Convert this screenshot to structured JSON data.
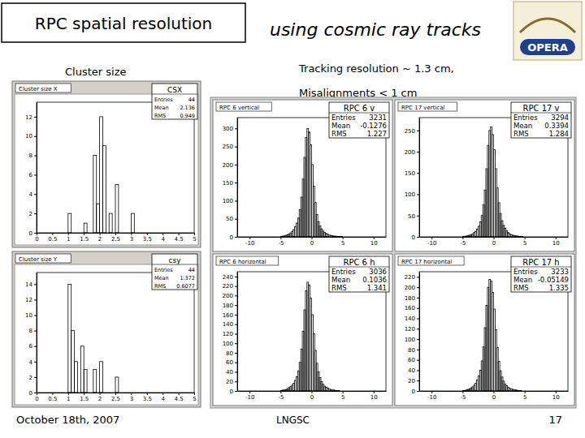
{
  "slide": {
    "title": "RPC spatial resolution",
    "subtitle": "using cosmic ray tracks",
    "section": "Cluster size",
    "notes": [
      "Tracking resolution ~ 1.3 cm,",
      "Misalignments < 1 cm"
    ],
    "logo": "OPERA",
    "footer": {
      "date": "October 18th, 2007",
      "venue": "LNGSC",
      "page": 17
    }
  },
  "chart_data": [
    {
      "type": "histogram",
      "title": "Cluster size X",
      "bins": [
        1,
        1.1,
        1.2,
        1.3,
        1.4,
        1.5,
        1.6,
        1.7,
        1.8,
        1.9,
        2,
        2.1,
        2.2,
        2.3,
        2.4,
        2.5,
        2.6,
        2.7,
        2.8,
        2.9,
        3,
        3.1
      ],
      "values": [
        2,
        0,
        0,
        0,
        0,
        1,
        0,
        0,
        8,
        3,
        12,
        9,
        0,
        2,
        0,
        5,
        0,
        0,
        0,
        0,
        2
      ],
      "xlim": [
        0,
        5
      ],
      "xticks": [
        0,
        0.5,
        1,
        1.5,
        2,
        2.5,
        3,
        3.5,
        4,
        4.5,
        5
      ],
      "ylim": [
        0,
        13.5
      ],
      "yticks": [
        0,
        2,
        4,
        6,
        8,
        10,
        12
      ],
      "stats": {
        "name": "CSX",
        "rows": [
          {
            "label": "Entries",
            "value": 44
          },
          {
            "label": "Mean",
            "value": 2.136
          },
          {
            "label": "RMS",
            "value": 0.949
          }
        ]
      }
    },
    {
      "type": "histogram",
      "title": "Cluster size Y",
      "bins": [
        1,
        1.1,
        1.2,
        1.3,
        1.4,
        1.5,
        1.6,
        1.7,
        1.8,
        1.9,
        2,
        2.1,
        2.2,
        2.3,
        2.4,
        2.5,
        2.6
      ],
      "values": [
        14,
        8,
        4,
        0,
        6,
        3,
        0,
        0,
        3,
        0,
        4,
        0,
        0,
        0,
        0,
        2
      ],
      "xlim": [
        0,
        5
      ],
      "xticks": [
        0,
        0.5,
        1,
        1.5,
        2,
        2.5,
        3,
        3.5,
        4,
        4.5,
        5
      ],
      "ylim": [
        0,
        15.5
      ],
      "yticks": [
        0,
        2,
        4,
        6,
        8,
        10,
        12,
        14
      ],
      "stats": {
        "name": "csy",
        "rows": [
          {
            "label": "Entries",
            "value": 44
          },
          {
            "label": "Mean",
            "value": 1.372
          },
          {
            "label": "RMS",
            "value": 0.6077
          }
        ]
      }
    },
    {
      "type": "histogram",
      "title": "RPC 6 vertical",
      "bins": [
        -5,
        -4.75,
        -4.5,
        -4.25,
        -4,
        -3.75,
        -3.5,
        -3.25,
        -3,
        -2.75,
        -2.5,
        -2.25,
        -2,
        -1.75,
        -1.5,
        -1.25,
        -1,
        -0.75,
        -0.5,
        -0.25,
        0,
        0.25,
        0.5,
        0.75,
        1,
        1.25,
        1.5,
        1.75,
        2,
        2.25,
        2.5,
        2.75,
        3,
        3.25,
        3.5,
        3.75,
        4,
        4.25,
        4.5,
        4.75,
        5
      ],
      "values": [
        1,
        2,
        3,
        4,
        6,
        8,
        11,
        15,
        20,
        28,
        38,
        52,
        75,
        110,
        160,
        220,
        275,
        300,
        290,
        255,
        200,
        140,
        95,
        62,
        42,
        30,
        22,
        16,
        12,
        9,
        7,
        5,
        4,
        3,
        2,
        2,
        1,
        1,
        1,
        1
      ],
      "xlim": [
        -12,
        12
      ],
      "xticks": [
        -10,
        -5,
        0,
        5,
        10
      ],
      "ylim": [
        0,
        330
      ],
      "yticks": [
        0,
        50,
        100,
        150,
        200,
        250,
        300
      ],
      "stats": {
        "name": "RPC 6 v",
        "rows": [
          {
            "label": "Entries",
            "value": 3231
          },
          {
            "label": "Mean",
            "value": -0.1276
          },
          {
            "label": "RMS",
            "value": 1.227
          }
        ]
      }
    },
    {
      "type": "histogram",
      "title": "RPC 17 vertical",
      "bins": [
        -5,
        -4.75,
        -4.5,
        -4.25,
        -4,
        -3.75,
        -3.5,
        -3.25,
        -3,
        -2.75,
        -2.5,
        -2.25,
        -2,
        -1.75,
        -1.5,
        -1.25,
        -1,
        -0.75,
        -0.5,
        -0.25,
        0,
        0.25,
        0.5,
        0.75,
        1,
        1.25,
        1.5,
        1.75,
        2,
        2.25,
        2.5,
        2.75,
        3,
        3.25,
        3.5,
        3.75,
        4,
        4.25,
        4.5,
        4.75,
        5
      ],
      "values": [
        1,
        1,
        2,
        3,
        4,
        5,
        7,
        10,
        13,
        18,
        25,
        35,
        50,
        75,
        110,
        160,
        215,
        250,
        258,
        240,
        205,
        160,
        115,
        80,
        55,
        38,
        27,
        20,
        14,
        10,
        7,
        5,
        4,
        3,
        2,
        2,
        1,
        1,
        1,
        0
      ],
      "xlim": [
        -12,
        12
      ],
      "xticks": [
        -10,
        -5,
        0,
        5,
        10
      ],
      "ylim": [
        0,
        280
      ],
      "yticks": [
        0,
        50,
        100,
        150,
        200,
        250
      ],
      "stats": {
        "name": "RPC 17 v",
        "rows": [
          {
            "label": "Entries",
            "value": 3294
          },
          {
            "label": "Mean",
            "value": 0.3394
          },
          {
            "label": "RMS",
            "value": 1.284
          }
        ]
      }
    },
    {
      "type": "histogram",
      "title": "RPC 6 horizontal",
      "bins": [
        -5,
        -4.75,
        -4.5,
        -4.25,
        -4,
        -3.75,
        -3.5,
        -3.25,
        -3,
        -2.75,
        -2.5,
        -2.25,
        -2,
        -1.75,
        -1.5,
        -1.25,
        -1,
        -0.75,
        -0.5,
        -0.25,
        0,
        0.25,
        0.5,
        0.75,
        1,
        1.25,
        1.5,
        1.75,
        2,
        2.25,
        2.5,
        2.75,
        3,
        3.25,
        3.5,
        3.75,
        4,
        4.25,
        4.5,
        4.75,
        5
      ],
      "values": [
        1,
        2,
        2,
        3,
        5,
        7,
        9,
        12,
        16,
        22,
        30,
        42,
        60,
        88,
        125,
        170,
        210,
        228,
        222,
        195,
        160,
        120,
        85,
        58,
        40,
        28,
        20,
        14,
        10,
        8,
        6,
        4,
        3,
        2,
        2,
        1,
        1,
        1,
        0,
        0
      ],
      "xlim": [
        -12,
        12
      ],
      "xticks": [
        -10,
        -5,
        0,
        5,
        10
      ],
      "ylim": [
        0,
        250
      ],
      "yticks": [
        0,
        20,
        40,
        60,
        80,
        100,
        120,
        140,
        160,
        180,
        200,
        220,
        240
      ],
      "stats": {
        "name": "RPC 6 h",
        "rows": [
          {
            "label": "Entries",
            "value": 3036
          },
          {
            "label": "Mean",
            "value": 0.1036
          },
          {
            "label": "RMS",
            "value": 1.341
          }
        ]
      }
    },
    {
      "type": "histogram",
      "title": "RPC 17 horizontal",
      "bins": [
        -5,
        -4.75,
        -4.5,
        -4.25,
        -4,
        -3.75,
        -3.5,
        -3.25,
        -3,
        -2.75,
        -2.5,
        -2.25,
        -2,
        -1.75,
        -1.5,
        -1.25,
        -1,
        -0.75,
        -0.5,
        -0.25,
        0,
        0.25,
        0.5,
        0.75,
        1,
        1.25,
        1.5,
        1.75,
        2,
        2.25,
        2.5,
        2.75,
        3,
        3.25,
        3.5,
        3.75,
        4,
        4.25,
        4.5,
        4.75,
        5
      ],
      "values": [
        1,
        1,
        2,
        3,
        4,
        6,
        8,
        11,
        15,
        21,
        29,
        40,
        58,
        85,
        122,
        165,
        200,
        215,
        212,
        190,
        158,
        118,
        84,
        57,
        39,
        27,
        19,
        13,
        10,
        7,
        5,
        4,
        3,
        2,
        2,
        1,
        1,
        1,
        0,
        0
      ],
      "xlim": [
        -12,
        12
      ],
      "xticks": [
        -10,
        -5,
        0,
        5,
        10
      ],
      "ylim": [
        0,
        230
      ],
      "yticks": [
        0,
        20,
        40,
        60,
        80,
        100,
        120,
        140,
        160,
        180,
        200,
        220
      ],
      "stats": {
        "name": "RPC 17 h",
        "rows": [
          {
            "label": "Entries",
            "value": 3233
          },
          {
            "label": "Mean",
            "value": -0.05149
          },
          {
            "label": "RMS",
            "value": 1.335
          }
        ]
      }
    }
  ]
}
